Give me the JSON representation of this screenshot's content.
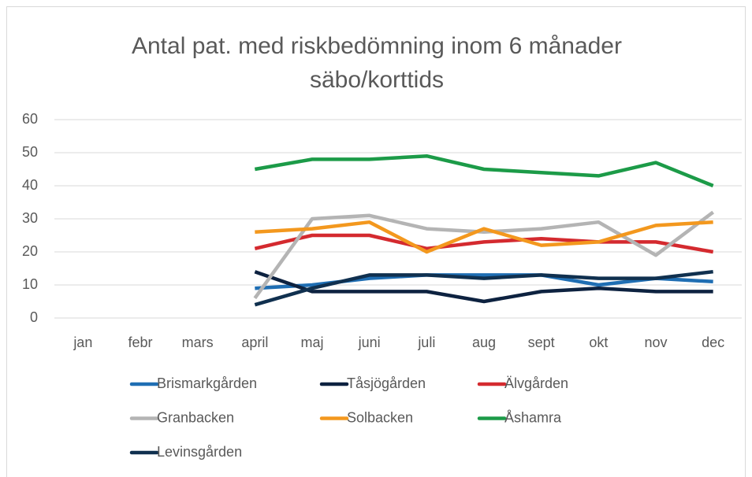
{
  "chart_data": {
    "type": "line",
    "title": [
      "Antal pat. med riskbedömning inom 6 månader",
      "säbo/korttids"
    ],
    "categories": [
      "jan",
      "febr",
      "mars",
      "april",
      "maj",
      "juni",
      "juli",
      "aug",
      "sept",
      "okt",
      "nov",
      "dec"
    ],
    "ylim": [
      0,
      60
    ],
    "yticks": [
      0,
      10,
      20,
      30,
      40,
      50,
      60
    ],
    "grid": true,
    "legend": "bottom",
    "series": [
      {
        "name": "Brismarkgården",
        "color": "#1f6eb3",
        "values": [
          null,
          null,
          null,
          9,
          10,
          12,
          13,
          13,
          13,
          10,
          12,
          11
        ]
      },
      {
        "name": "Tåsjögården",
        "color": "#0d2240",
        "values": [
          null,
          null,
          null,
          14,
          8,
          8,
          8,
          5,
          8,
          9,
          8,
          8
        ]
      },
      {
        "name": "Älvgården",
        "color": "#d42a2f",
        "values": [
          null,
          null,
          null,
          21,
          25,
          25,
          21,
          23,
          24,
          23,
          23,
          20
        ]
      },
      {
        "name": "Granbacken",
        "color": "#b4b4b4",
        "values": [
          null,
          null,
          null,
          6,
          30,
          31,
          27,
          26,
          27,
          29,
          19,
          32
        ]
      },
      {
        "name": "Solbacken",
        "color": "#f3981e",
        "values": [
          null,
          null,
          null,
          26,
          27,
          29,
          20,
          27,
          22,
          23,
          28,
          29
        ]
      },
      {
        "name": "Åshamra",
        "color": "#1c9b48",
        "values": [
          null,
          null,
          null,
          45,
          48,
          48,
          49,
          45,
          44,
          43,
          47,
          40
        ]
      },
      {
        "name": "Levinsgården",
        "color": "#10304f",
        "values": [
          null,
          null,
          null,
          4,
          9,
          13,
          13,
          12,
          13,
          12,
          12,
          14
        ]
      }
    ]
  }
}
